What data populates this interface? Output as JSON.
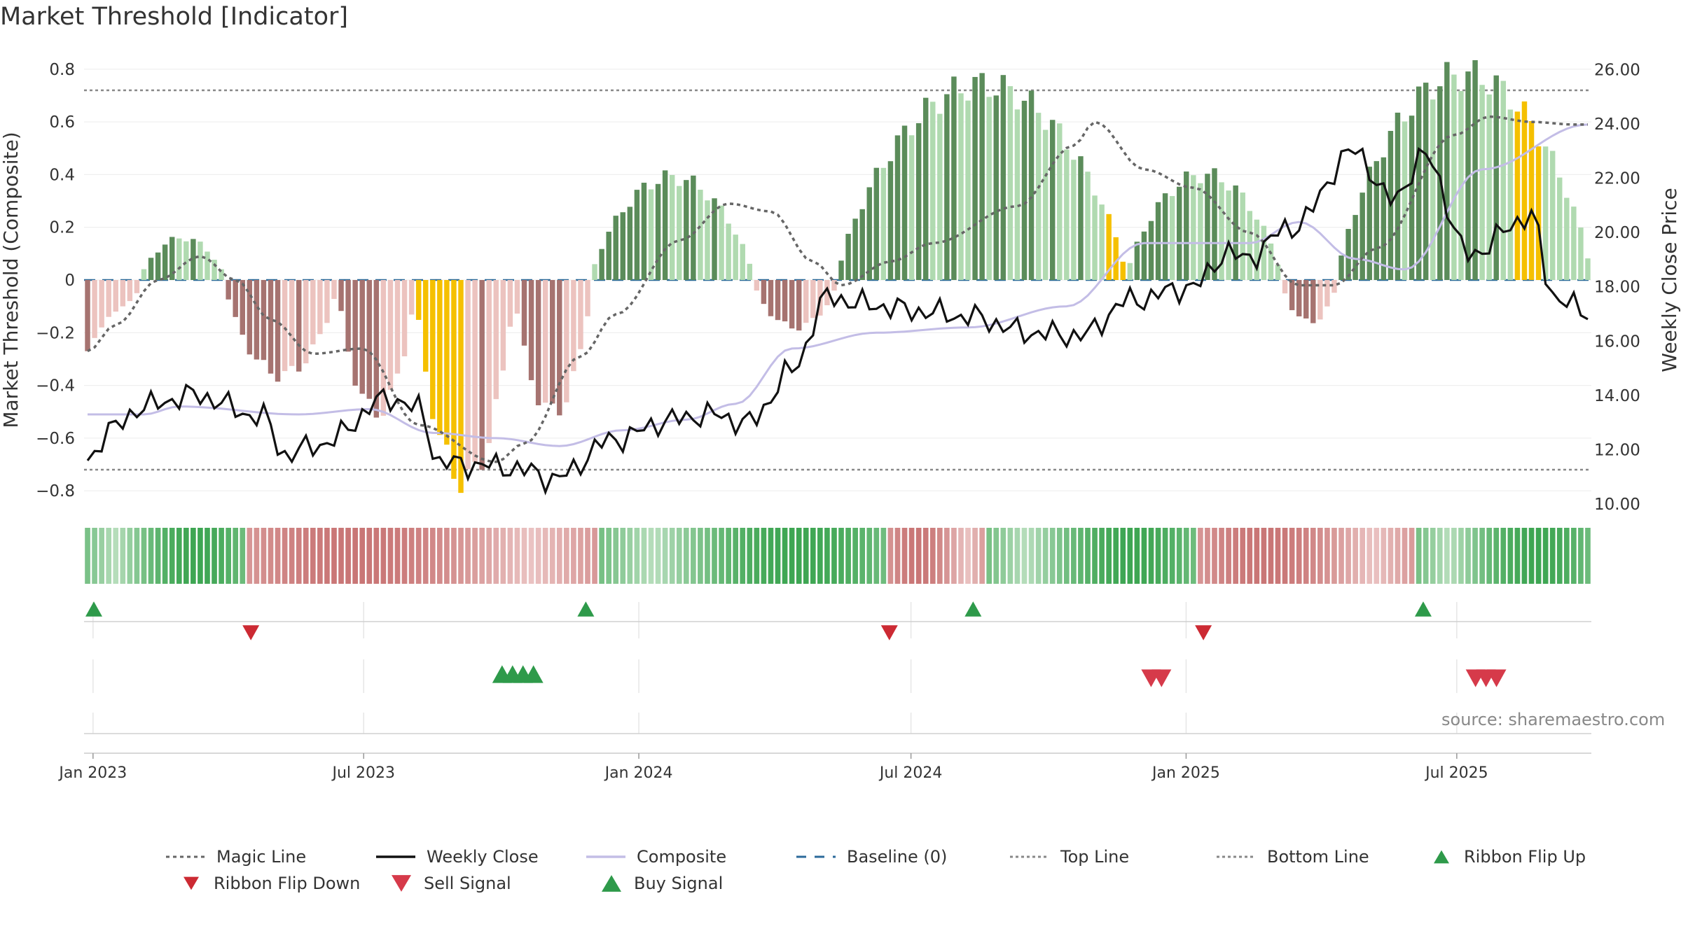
{
  "title": "Market Threshold [Indicator]",
  "source": "source: sharemaestro.com",
  "colors": {
    "pos_dark": "#5b8c5a",
    "pos_light": "#b0dab0",
    "neg_dark": "#a67370",
    "neg_light": "#ecc3bf",
    "extreme": "#f5c000",
    "close": "#111111",
    "composite": "#c3bde6",
    "magic": "#666666",
    "baseline": "#2b6a9a",
    "ref": "#888888",
    "buy": "#2e9a4a",
    "sell": "#d63a4a",
    "flip_down": "#cc2a33"
  },
  "chart_data": {
    "type": "bar",
    "title": "Market Threshold [Indicator]",
    "ylabel_left": "Market Threshold (Composite)",
    "ylabel_right": "Weekly Close Price",
    "x_start": "2022-12-26",
    "x_end": "2025-09-29",
    "x_ticks": [
      {
        "date": "2023-01-01",
        "label": "Jan 2023"
      },
      {
        "date": "2023-07-01",
        "label": "Jul 2023"
      },
      {
        "date": "2024-01-01",
        "label": "Jan 2024"
      },
      {
        "date": "2024-07-01",
        "label": "Jul 2024"
      },
      {
        "date": "2025-01-01",
        "label": "Jan 2025"
      },
      {
        "date": "2025-07-01",
        "label": "Jul 2025"
      }
    ],
    "y_left": {
      "min": -0.85,
      "max": 0.85,
      "ticks": [
        -0.8,
        -0.6,
        -0.4,
        -0.2,
        0,
        0.2,
        0.4,
        0.6,
        0.8
      ],
      "tick_labels": [
        "−0.8",
        "−0.6",
        "−0.4",
        "−0.2",
        "0",
        "0.2",
        "0.4",
        "0.6",
        "0.8"
      ]
    },
    "y_right": {
      "min": 10.0,
      "max": 26.5,
      "ticks": [
        10,
        12,
        14,
        16,
        18,
        20,
        22,
        24,
        26
      ],
      "tick_labels": [
        "10.00",
        "12.00",
        "14.00",
        "16.00",
        "18.00",
        "20.00",
        "22.00",
        "24.00",
        "26.00"
      ]
    },
    "top_line": 0.72,
    "bottom_line": -0.72,
    "baseline": 0,
    "magic_line_anchors": [
      [
        0,
        -0.27
      ],
      [
        4,
        -0.17
      ],
      [
        10,
        0.0
      ],
      [
        16,
        0.09
      ],
      [
        21,
        0.0
      ],
      [
        26,
        -0.15
      ],
      [
        32,
        -0.28
      ],
      [
        39,
        -0.26
      ],
      [
        47,
        -0.55
      ],
      [
        58,
        -0.69
      ],
      [
        62,
        -0.62
      ],
      [
        70,
        -0.29
      ],
      [
        75,
        -0.13
      ],
      [
        84,
        0.15
      ],
      [
        91,
        0.29
      ],
      [
        97,
        0.26
      ],
      [
        103,
        0.07
      ],
      [
        107,
        -0.02
      ],
      [
        114,
        0.07
      ],
      [
        120,
        0.14
      ],
      [
        132,
        0.28
      ],
      [
        140,
        0.51
      ],
      [
        143,
        0.6
      ],
      [
        150,
        0.42
      ],
      [
        157,
        0.35
      ],
      [
        165,
        0.18
      ],
      [
        172,
        -0.02
      ],
      [
        177,
        -0.02
      ],
      [
        183,
        0.12
      ],
      [
        194,
        0.55
      ],
      [
        199,
        0.62
      ],
      [
        205,
        0.6
      ],
      [
        211,
        0.59
      ]
    ],
    "composite_anchors": [
      [
        0,
        -0.51
      ],
      [
        8,
        -0.51
      ],
      [
        13,
        -0.48
      ],
      [
        30,
        -0.51
      ],
      [
        40,
        -0.49
      ],
      [
        49,
        -0.58
      ],
      [
        58,
        -0.6
      ],
      [
        67,
        -0.63
      ],
      [
        76,
        -0.57
      ],
      [
        85,
        -0.53
      ],
      [
        92,
        -0.47
      ],
      [
        100,
        -0.26
      ],
      [
        112,
        -0.2
      ],
      [
        125,
        -0.18
      ],
      [
        139,
        -0.1
      ],
      [
        150,
        0.14
      ],
      [
        165,
        0.14
      ],
      [
        172,
        0.22
      ],
      [
        180,
        0.08
      ],
      [
        187,
        0.04
      ],
      [
        198,
        0.42
      ],
      [
        213,
        0.59
      ]
    ],
    "close_anchors": [
      [
        0,
        11.6
      ],
      [
        3,
        12.7
      ],
      [
        8,
        13.6
      ],
      [
        15,
        14.0
      ],
      [
        25,
        13.2
      ],
      [
        28,
        11.8
      ],
      [
        33,
        12.2
      ],
      [
        43,
        13.9
      ],
      [
        47,
        13.5
      ],
      [
        50,
        11.5
      ],
      [
        58,
        11.4
      ],
      [
        63,
        11.2
      ],
      [
        66,
        10.9
      ],
      [
        75,
        12.4
      ],
      [
        83,
        13.1
      ],
      [
        88,
        13.3
      ],
      [
        94,
        13.0
      ],
      [
        100,
        14.9
      ],
      [
        105,
        17.6
      ],
      [
        112,
        17.3
      ],
      [
        118,
        17.1
      ],
      [
        125,
        16.9
      ],
      [
        134,
        16.3
      ],
      [
        141,
        16.2
      ],
      [
        148,
        17.5
      ],
      [
        157,
        18.0
      ],
      [
        162,
        19.3
      ],
      [
        164,
        19.0
      ],
      [
        171,
        20.2
      ],
      [
        180,
        23.0
      ],
      [
        185,
        21.2
      ],
      [
        190,
        22.8
      ],
      [
        196,
        19.2
      ],
      [
        205,
        20.6
      ],
      [
        208,
        17.7
      ],
      [
        213,
        17.0
      ]
    ],
    "bar_segments": [
      {
        "start": 0,
        "end": 8,
        "sign": -1,
        "shade": "light",
        "values": [
          -0.27,
          -0.22,
          -0.18,
          -0.14,
          -0.12,
          -0.1,
          -0.08,
          -0.05
        ]
      },
      {
        "start": 8,
        "end": 20,
        "sign": 1,
        "shade": "mixed",
        "peak": 0.16
      },
      {
        "start": 20,
        "end": 36,
        "sign": -1,
        "shade": "mixed",
        "peak": -0.36
      },
      {
        "start": 36,
        "end": 47,
        "sign": -1,
        "shade": "dark",
        "peak": -0.5
      },
      {
        "start": 47,
        "end": 61,
        "sign": -1,
        "shade": "extreme",
        "peak": -0.76
      },
      {
        "start": 61,
        "end": 72,
        "sign": -1,
        "shade": "light",
        "peak": -0.5
      },
      {
        "start": 72,
        "end": 95,
        "sign": 1,
        "shade": "mixed",
        "peak": 0.39
      },
      {
        "start": 95,
        "end": 107,
        "sign": -1,
        "shade": "mixed",
        "peak": -0.18
      },
      {
        "start": 107,
        "end": 148,
        "sign": 1,
        "shade": "mixed",
        "peak": 0.74
      },
      {
        "start": 148,
        "end": 170,
        "sign": 1,
        "shade": "light",
        "peak": 0.4
      },
      {
        "start": 170,
        "end": 178,
        "sign": -1,
        "shade": "mixed",
        "peak": -0.16
      },
      {
        "start": 178,
        "end": 214,
        "sign": 1,
        "shade": "mixed",
        "peak": 0.78
      }
    ],
    "extreme_ranges": [
      [
        47,
        53
      ],
      [
        145,
        147
      ],
      [
        203,
        206
      ]
    ],
    "ribbon_phases": [
      {
        "start": 0,
        "end": 23,
        "sign": 1
      },
      {
        "start": 23,
        "end": 73,
        "sign": -1
      },
      {
        "start": 73,
        "end": 114,
        "sign": 1
      },
      {
        "start": 114,
        "end": 128,
        "sign": -1
      },
      {
        "start": 128,
        "end": 158,
        "sign": 1
      },
      {
        "start": 158,
        "end": 189,
        "sign": -1
      },
      {
        "start": 189,
        "end": 214,
        "sign": 1
      }
    ],
    "ribbon_flip_up_dates": [
      "2022-12-26",
      "2023-11-20",
      "2024-08-05",
      "2025-06-02"
    ],
    "ribbon_flip_down_dates": [
      "2023-04-10",
      "2024-06-10",
      "2025-01-06"
    ],
    "buy_signal_dates": [
      "2023-09-25",
      "2023-10-02",
      "2023-10-09",
      "2023-10-16"
    ],
    "sell_signal_dates": [
      "2024-12-02",
      "2024-12-09",
      "2025-07-07",
      "2025-07-14",
      "2025-07-21"
    ]
  },
  "legend": [
    {
      "key": "magic",
      "label": "Magic Line",
      "glyph": "dotted",
      "color": "#666666"
    },
    {
      "key": "close",
      "label": "Weekly Close",
      "glyph": "solid",
      "color": "#111111"
    },
    {
      "key": "composite",
      "label": "Composite",
      "glyph": "solid",
      "color": "#c3bde6"
    },
    {
      "key": "baseline",
      "label": "Baseline (0)",
      "glyph": "dashed",
      "color": "#2b6a9a"
    },
    {
      "key": "top",
      "label": "Top Line",
      "glyph": "dotted-thin",
      "color": "#888888"
    },
    {
      "key": "bottom",
      "label": "Bottom Line",
      "glyph": "dotted-thin",
      "color": "#888888"
    },
    {
      "key": "flip_up",
      "label": "Ribbon Flip Up",
      "glyph": "tri-up",
      "color": "#2e9a4a"
    },
    {
      "key": "flip_down",
      "label": "Ribbon Flip Down",
      "glyph": "tri-down",
      "color": "#cc2a33"
    },
    {
      "key": "sell",
      "label": "Sell Signal",
      "glyph": "tri-down-big",
      "color": "#d63a4a"
    },
    {
      "key": "buy",
      "label": "Buy Signal",
      "glyph": "tri-up-big",
      "color": "#2e9a4a"
    }
  ]
}
